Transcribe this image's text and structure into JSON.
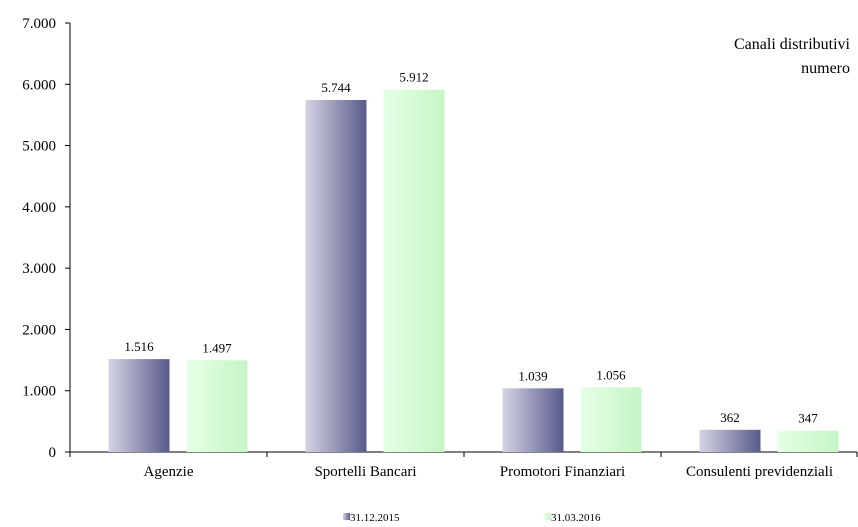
{
  "chart_data": {
    "type": "bar",
    "title": "Canali distributivi",
    "subtitle": "numero",
    "categories": [
      "Agenzie",
      "Sportelli Bancari",
      "Promotori Finanziari",
      "Consulenti previdenziali"
    ],
    "series": [
      {
        "name": "31.12.2015",
        "values": [
          1516,
          5744,
          1039,
          362
        ],
        "value_labels": [
          "1.516",
          "5.744",
          "1.039",
          "362"
        ],
        "color_light": "#d4d4e4",
        "color_dark": "#5a5a8c"
      },
      {
        "name": "31.03.2016",
        "values": [
          1497,
          5912,
          1056,
          347
        ],
        "value_labels": [
          "1.497",
          "5.912",
          "1.056",
          "347"
        ],
        "color_light": "#e6ffe6",
        "color_dark": "#c6f5c6"
      }
    ],
    "ylim": [
      0,
      7000
    ],
    "yticks": [
      0,
      1000,
      2000,
      3000,
      4000,
      5000,
      6000,
      7000
    ],
    "ytick_labels": [
      "0",
      "1.000",
      "2.000",
      "3.000",
      "4.000",
      "5.000",
      "6.000",
      "7.000"
    ],
    "grid": false,
    "legend_position": "bottom"
  }
}
